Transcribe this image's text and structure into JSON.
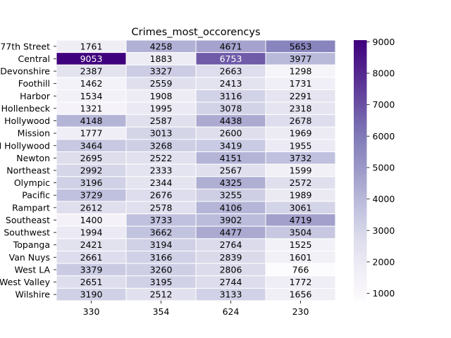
{
  "chart_data": {
    "type": "heatmap",
    "title": "Crimes_most_occorencys",
    "xlabel": "",
    "ylabel": "",
    "x_categories": [
      "330",
      "354",
      "624",
      "230"
    ],
    "y_categories": [
      "77th Street",
      "Central",
      "Devonshire",
      "Foothill",
      "Harbor",
      "Hollenbeck",
      "Hollywood",
      "Mission",
      "N Hollywood",
      "Newton",
      "Northeast",
      "Olympic",
      "Pacific",
      "Rampart",
      "Southeast",
      "Southwest",
      "Topanga",
      "Van Nuys",
      "West LA",
      "West Valley",
      "Wilshire"
    ],
    "values": [
      [
        1761,
        4258,
        4671,
        5653
      ],
      [
        9053,
        1883,
        6753,
        3977
      ],
      [
        2387,
        3327,
        2663,
        1298
      ],
      [
        1462,
        2559,
        2413,
        1731
      ],
      [
        1534,
        1908,
        3116,
        2291
      ],
      [
        1321,
        1995,
        3078,
        2318
      ],
      [
        4148,
        2587,
        4438,
        2678
      ],
      [
        1777,
        3013,
        2600,
        1969
      ],
      [
        3464,
        3268,
        3419,
        1955
      ],
      [
        2695,
        2522,
        4151,
        3732
      ],
      [
        2992,
        2333,
        2567,
        1599
      ],
      [
        3196,
        2344,
        4325,
        2572
      ],
      [
        3729,
        2676,
        3255,
        1989
      ],
      [
        2612,
        2578,
        4106,
        3061
      ],
      [
        1400,
        3733,
        3902,
        4719
      ],
      [
        1994,
        3662,
        4477,
        3504
      ],
      [
        2421,
        3194,
        2764,
        1525
      ],
      [
        2661,
        3166,
        2839,
        1601
      ],
      [
        3379,
        3260,
        2806,
        766
      ],
      [
        2651,
        3195,
        2744,
        1772
      ],
      [
        3190,
        2512,
        3133,
        1656
      ]
    ],
    "colormap": "Purples",
    "vmin": 766,
    "vmax": 9053,
    "colorbar_ticks": [
      1000,
      2000,
      3000,
      4000,
      5000,
      6000,
      7000,
      8000,
      9000
    ],
    "annotate": true,
    "grid": false,
    "legend": "colorbar-right"
  }
}
